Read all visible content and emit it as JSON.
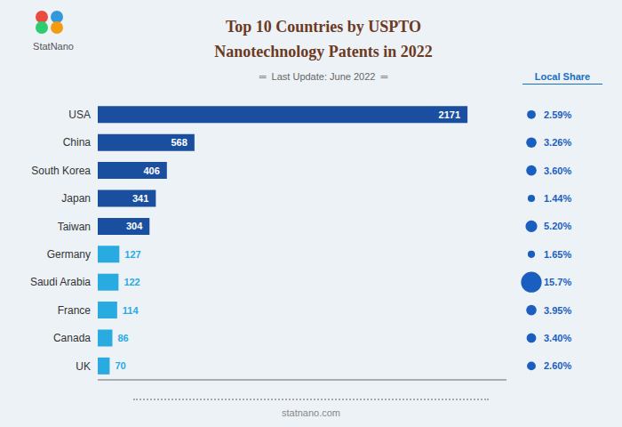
{
  "chart_data": {
    "type": "bar",
    "orientation": "horizontal",
    "title": "Top 10 Countries by USPTO\nNanotechnology Patents in 2022",
    "subtitle": "═  Last Update: June 2022  ═",
    "annotations": [
      "statnano.com",
      "StatNano"
    ],
    "categories": [
      "USA",
      "China",
      "South Korea",
      "Japan",
      "Taiwan",
      "Germany",
      "Saudi Arabia",
      "France",
      "Canada",
      "UK"
    ],
    "values": [
      2171,
      568,
      406,
      341,
      304,
      127,
      122,
      114,
      86,
      70
    ],
    "colors": [
      "#1a4fa0",
      "#1a4fa0",
      "#1a4fa0",
      "#1a4fa0",
      "#1a4fa0",
      "#29abe2",
      "#29abe2",
      "#29abe2",
      "#29abe2",
      "#29abe2"
    ],
    "xlim": [
      0,
      2400
    ],
    "data_labels": true,
    "tick_labels": "y",
    "grid": false,
    "local_share": {
      "name": "Local Share",
      "values": [
        2.59,
        3.26,
        3.6,
        1.44,
        5.2,
        1.65,
        15.7,
        3.95,
        3.4,
        2.6
      ],
      "value_labels": [
        "2.59%",
        "3.26%",
        "3.60%",
        "1.44%",
        "5.20%",
        "1.65%",
        "15.7%",
        "3.95%",
        "3.40%",
        "2.60%"
      ],
      "sizes": [
        5,
        7,
        7,
        3.5,
        9,
        3.5,
        28,
        7,
        6,
        5
      ],
      "color": "#1a5fbf"
    }
  }
}
